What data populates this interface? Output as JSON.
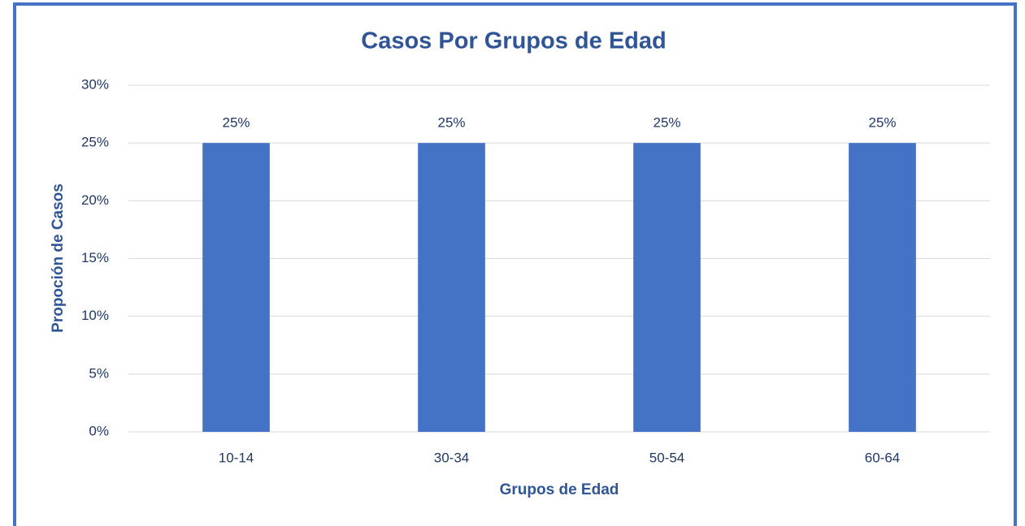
{
  "chart_data": {
    "type": "bar",
    "title": "Casos Por Grupos de Edad",
    "x_label": "Grupos de Edad",
    "y_label": "Propoción de Casos",
    "categories": [
      "10-14",
      "30-34",
      "50-54",
      "60-64"
    ],
    "values": [
      25,
      25,
      25,
      25
    ],
    "value_labels": [
      "25%",
      "25%",
      "25%",
      "25%"
    ],
    "color": "#4472c4",
    "ylim": [
      0,
      30
    ],
    "yticks": [
      {
        "value": 0,
        "label": "0%"
      },
      {
        "value": 5,
        "label": "5%"
      },
      {
        "value": 10,
        "label": "10%"
      },
      {
        "value": 15,
        "label": "15%"
      },
      {
        "value": 20,
        "label": "20%"
      },
      {
        "value": 25,
        "label": "25%"
      },
      {
        "value": 30,
        "label": "30%"
      }
    ],
    "grid": true
  }
}
